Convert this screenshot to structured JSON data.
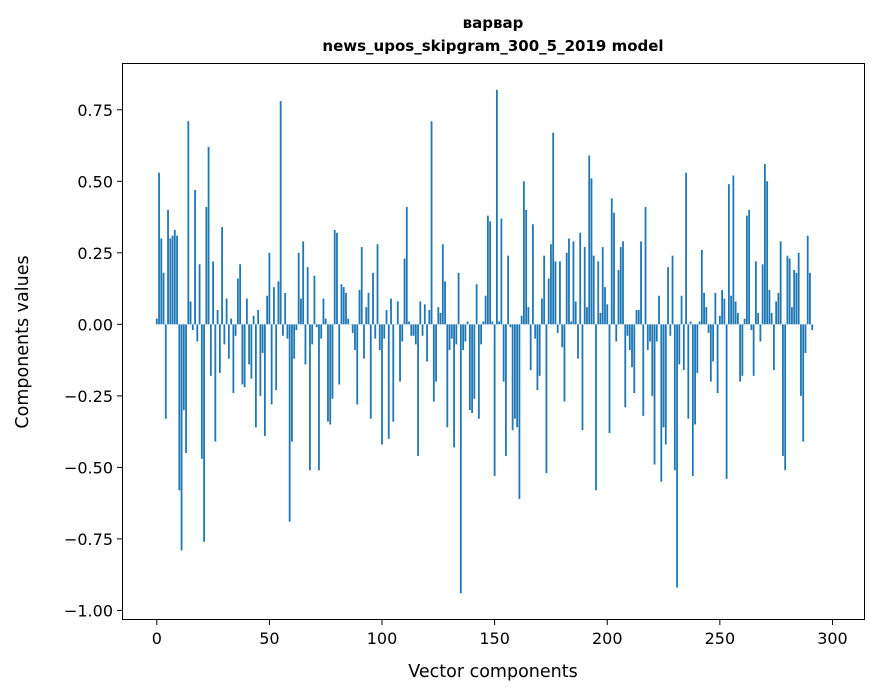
{
  "chart_data": {
    "type": "bar",
    "title": "варвар",
    "subtitle": "news_upos_skipgram_300_5_2019 model",
    "xlabel": "Vector components",
    "ylabel": "Components values",
    "xlim": [
      -15,
      314
    ],
    "ylim": [
      -1.03,
      0.91
    ],
    "xticks": [
      0,
      50,
      100,
      150,
      200,
      250,
      300
    ],
    "yticks": [
      -1.0,
      -0.75,
      -0.5,
      -0.25,
      0.0,
      0.25,
      0.5,
      0.75
    ],
    "xtick_labels": [
      "0",
      "50",
      "100",
      "150",
      "200",
      "250",
      "300"
    ],
    "ytick_labels": [
      "−1.00",
      "−0.75",
      "−0.50",
      "−0.25",
      "0.00",
      "0.25",
      "0.50",
      "0.75"
    ],
    "bar_color": "#1f77b4",
    "values": [
      0.02,
      0.53,
      0.3,
      0.18,
      -0.33,
      0.4,
      0.3,
      0.31,
      0.33,
      0.31,
      -0.58,
      -0.79,
      -0.3,
      -0.45,
      0.71,
      0.08,
      -0.02,
      0.47,
      -0.06,
      0.21,
      -0.47,
      -0.76,
      0.41,
      0.62,
      -0.18,
      0.22,
      -0.41,
      0.05,
      -0.17,
      0.34,
      -0.07,
      0.09,
      -0.12,
      0.02,
      -0.24,
      -0.04,
      0.16,
      0.21,
      -0.21,
      -0.22,
      0.09,
      -0.14,
      -0.19,
      0.03,
      -0.36,
      0.05,
      -0.25,
      -0.1,
      -0.39,
      0.1,
      0.25,
      -0.28,
      0.13,
      -0.23,
      0.15,
      0.78,
      -0.04,
      0.11,
      -0.05,
      -0.69,
      -0.41,
      -0.12,
      -0.02,
      0.25,
      0.09,
      0.29,
      -0.14,
      0.2,
      -0.51,
      -0.07,
      0.17,
      -0.01,
      -0.51,
      -0.05,
      0.09,
      0.02,
      -0.34,
      -0.35,
      -0.26,
      0.33,
      0.32,
      -0.21,
      0.14,
      0.13,
      0.11,
      0.02,
      0.0,
      -0.03,
      -0.09,
      -0.28,
      0.12,
      0.27,
      -0.12,
      0.06,
      0.11,
      -0.33,
      0.18,
      -0.05,
      0.28,
      -0.09,
      -0.42,
      -0.05,
      0.05,
      -0.4,
      0.09,
      -0.34,
      0.0,
      0.08,
      -0.2,
      -0.06,
      0.23,
      0.41,
      0.01,
      -0.04,
      -0.04,
      -0.07,
      -0.46,
      0.08,
      -0.04,
      0.07,
      -0.13,
      0.05,
      0.71,
      -0.27,
      -0.2,
      0.06,
      0.04,
      0.28,
      0.15,
      -0.36,
      -0.09,
      -0.05,
      -0.43,
      -0.07,
      0.18,
      -0.94,
      -0.09,
      -0.06,
      0.01,
      -0.3,
      -0.31,
      -0.26,
      0.14,
      -0.33,
      -0.07,
      0.01,
      0.1,
      0.38,
      0.36,
      0.01,
      -0.53,
      0.82,
      0.01,
      0.37,
      -0.2,
      -0.46,
      0.24,
      -0.01,
      -0.37,
      -0.33,
      -0.36,
      -0.61,
      0.03,
      0.5,
      0.4,
      0.06,
      -0.16,
      0.35,
      -0.05,
      -0.23,
      -0.18,
      0.09,
      0.24,
      -0.52,
      0.16,
      0.28,
      0.67,
      0.22,
      -0.03,
      0.22,
      -0.08,
      -0.27,
      0.25,
      0.3,
      0.01,
      0.29,
      0.08,
      -0.12,
      0.32,
      -0.37,
      0.27,
      0.06,
      0.59,
      0.51,
      0.24,
      -0.58,
      0.22,
      0.04,
      0.27,
      0.13,
      0.07,
      -0.38,
      0.44,
      0.39,
      -0.06,
      0.19,
      0.27,
      0.29,
      -0.29,
      -0.04,
      -0.09,
      -0.15,
      -0.24,
      0.05,
      0.05,
      0.29,
      -0.32,
      0.41,
      -0.09,
      -0.06,
      -0.25,
      -0.49,
      -0.06,
      0.1,
      -0.55,
      -0.36,
      -0.42,
      0.2,
      -0.04,
      0.24,
      -0.51,
      -0.92,
      -0.14,
      0.1,
      -0.16,
      0.53,
      -0.33,
      0.01,
      -0.53,
      -0.35,
      -0.17,
      0.01,
      0.26,
      0.11,
      0.06,
      -0.03,
      -0.2,
      -0.13,
      0.11,
      -0.24,
      0.03,
      0.12,
      0.09,
      -0.54,
      0.49,
      0.1,
      0.52,
      0.08,
      0.04,
      -0.2,
      -0.18,
      0.02,
      0.38,
      0.4,
      -0.02,
      -0.18,
      0.22,
      0.04,
      -0.06,
      0.21,
      0.56,
      0.5,
      0.12,
      0.04,
      -0.16,
      0.08,
      0.11,
      0.29,
      -0.46,
      -0.51,
      0.24,
      0.23,
      0.06,
      0.19,
      0.18,
      0.25,
      -0.25,
      -0.41,
      -0.1,
      0.31,
      0.18,
      -0.02
    ]
  }
}
